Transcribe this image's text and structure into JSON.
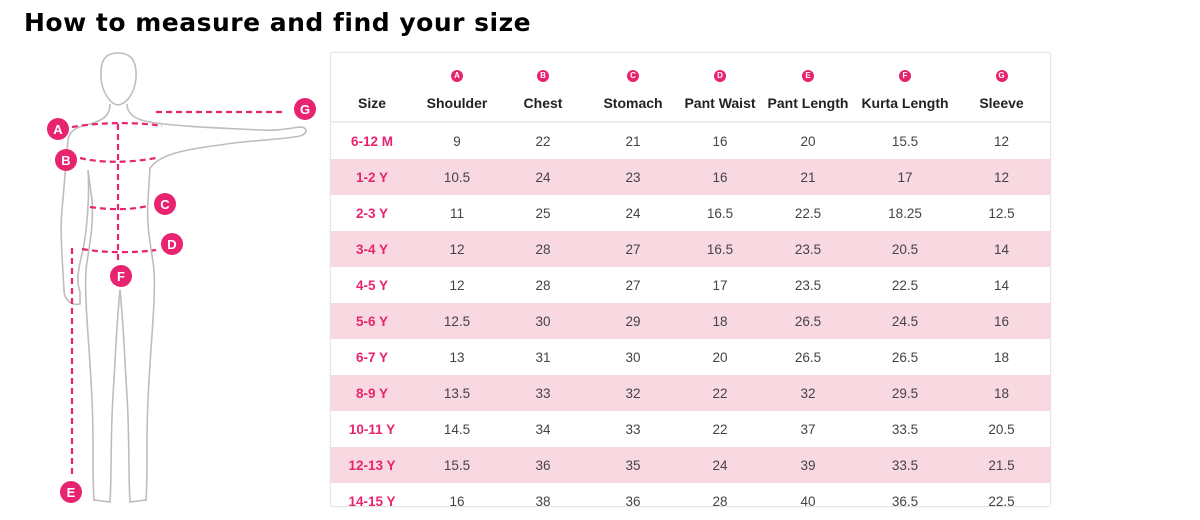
{
  "title": "How to measure and find your size",
  "accent_color": "#e8236f",
  "stripe_color": "#f8d9e2",
  "figure": {
    "markers": [
      "A",
      "B",
      "C",
      "D",
      "E",
      "F",
      "G"
    ]
  },
  "table": {
    "columns": [
      {
        "label": "Size",
        "marker": ""
      },
      {
        "label": "Shoulder",
        "marker": "A"
      },
      {
        "label": "Chest",
        "marker": "B"
      },
      {
        "label": "Stomach",
        "marker": "C"
      },
      {
        "label": "Pant Waist",
        "marker": "D"
      },
      {
        "label": "Pant Length",
        "marker": "E"
      },
      {
        "label": "Kurta Length",
        "marker": "F"
      },
      {
        "label": "Sleeve",
        "marker": "G"
      }
    ],
    "rows": [
      [
        "6-12 M",
        "9",
        "22",
        "21",
        "16",
        "20",
        "15.5",
        "12"
      ],
      [
        "1-2 Y",
        "10.5",
        "24",
        "23",
        "16",
        "21",
        "17",
        "12"
      ],
      [
        "2-3 Y",
        "11",
        "25",
        "24",
        "16.5",
        "22.5",
        "18.25",
        "12.5"
      ],
      [
        "3-4 Y",
        "12",
        "28",
        "27",
        "16.5",
        "23.5",
        "20.5",
        "14"
      ],
      [
        "4-5 Y",
        "12",
        "28",
        "27",
        "17",
        "23.5",
        "22.5",
        "14"
      ],
      [
        "5-6 Y",
        "12.5",
        "30",
        "29",
        "18",
        "26.5",
        "24.5",
        "16"
      ],
      [
        "6-7 Y",
        "13",
        "31",
        "30",
        "20",
        "26.5",
        "26.5",
        "18"
      ],
      [
        "8-9 Y",
        "13.5",
        "33",
        "32",
        "22",
        "32",
        "29.5",
        "18"
      ],
      [
        "10-11 Y",
        "14.5",
        "34",
        "33",
        "22",
        "37",
        "33.5",
        "20.5"
      ],
      [
        "12-13 Y",
        "15.5",
        "36",
        "35",
        "24",
        "39",
        "33.5",
        "21.5"
      ],
      [
        "14-15 Y",
        "16",
        "38",
        "36",
        "28",
        "40",
        "36.5",
        "22.5"
      ]
    ]
  }
}
